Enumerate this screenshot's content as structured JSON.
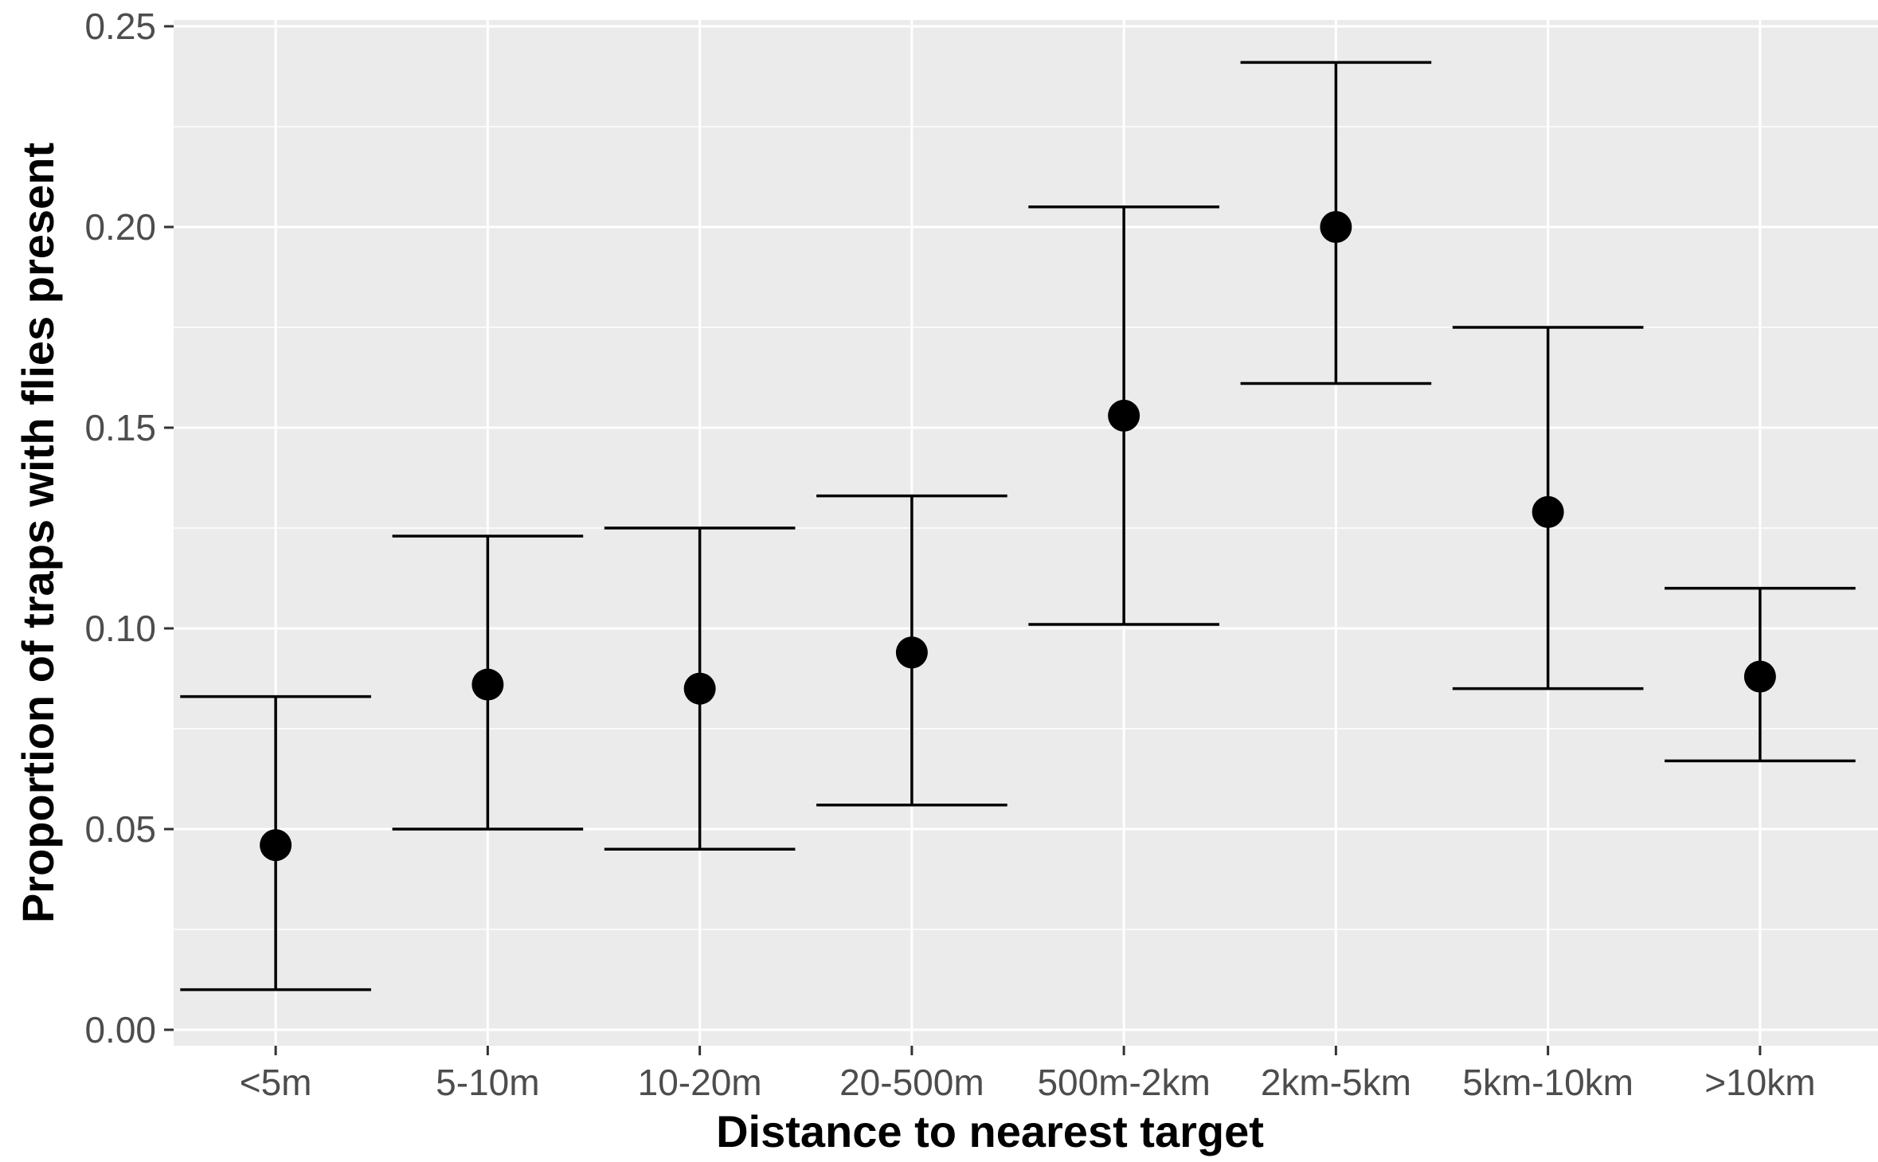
{
  "chart_data": {
    "type": "scatter",
    "subtype": "point-with-error-bars",
    "title": "",
    "xlabel": "Distance to nearest target",
    "ylabel": "Proportion of traps with flies present",
    "categories": [
      "<5m",
      "5-10m",
      "10-20m",
      "20-500m",
      "500m-2km",
      "2km-5km",
      "5km-10km",
      ">10km"
    ],
    "series": [
      {
        "values": [
          0.046,
          0.086,
          0.085,
          0.094,
          0.153,
          0.2,
          0.129,
          0.088
        ],
        "lower": [
          0.01,
          0.05,
          0.045,
          0.056,
          0.101,
          0.161,
          0.085,
          0.067
        ],
        "upper": [
          0.083,
          0.123,
          0.125,
          0.133,
          0.205,
          0.241,
          0.175,
          0.11
        ]
      }
    ],
    "ylim": [
      0.0,
      0.25
    ],
    "yticks": [
      0.0,
      0.05,
      0.1,
      0.15,
      0.2,
      0.25
    ],
    "ytick_labels": [
      "0.00",
      "0.05",
      "0.10",
      "0.15",
      "0.20",
      "0.25"
    ],
    "grid": true,
    "legend": "none",
    "colors": {
      "panel_background": "#ebebeb",
      "grid": "#ffffff",
      "point": "#000000",
      "errorbar": "#000000",
      "tick_text": "#4d4d4d",
      "title_text": "#000000"
    }
  }
}
